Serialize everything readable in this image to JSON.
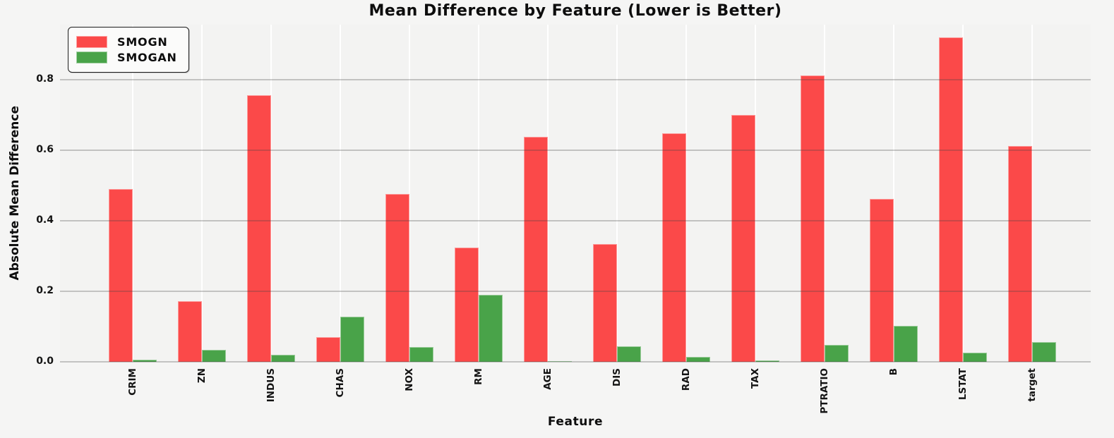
{
  "title": "Mean Difference by Feature (Lower is Better)",
  "colors": {
    "smogn_red": "#fb4949",
    "smogan_green": "#49a349",
    "plot_background": "#f3f3f2",
    "figure_background": "#f5f5f4",
    "horizontal_grid": "rgba(70,70,70,0.28)",
    "vertical_grid": "#ffffff"
  },
  "legend": {
    "items": [
      {
        "label": "SMOGN",
        "color": "#fb4949"
      },
      {
        "label": "SMOGAN",
        "color": "#49a349"
      }
    ]
  },
  "chart_data": {
    "type": "bar",
    "title": "Mean Difference by Feature (Lower is Better)",
    "xlabel": "Feature",
    "ylabel": "Absolute Mean Difference",
    "categories": [
      "CRIM",
      "ZN",
      "INDUS",
      "CHAS",
      "NOX",
      "RM",
      "AGE",
      "DIS",
      "RAD",
      "TAX",
      "PTRATIO",
      "B",
      "LSTAT",
      "target"
    ],
    "series": [
      {
        "name": "SMOGN",
        "color": "#fb4949",
        "values": [
          0.49,
          0.172,
          0.755,
          0.07,
          0.475,
          0.323,
          0.638,
          0.333,
          0.648,
          0.7,
          0.812,
          0.462,
          0.92,
          0.612
        ]
      },
      {
        "name": "SMOGAN",
        "color": "#49a349",
        "values": [
          0.005,
          0.034,
          0.019,
          0.127,
          0.042,
          0.19,
          0.002,
          0.044,
          0.013,
          0.004,
          0.047,
          0.102,
          0.026,
          0.056
        ]
      }
    ],
    "yticks": [
      0.0,
      0.2,
      0.4,
      0.6,
      0.8
    ],
    "ytick_labels": [
      "0.0",
      "0.2",
      "0.4",
      "0.6",
      "0.8"
    ],
    "ylim": [
      0,
      0.956
    ],
    "grid": true,
    "legend_position": "upper left",
    "x_tick_rotation": 90
  }
}
